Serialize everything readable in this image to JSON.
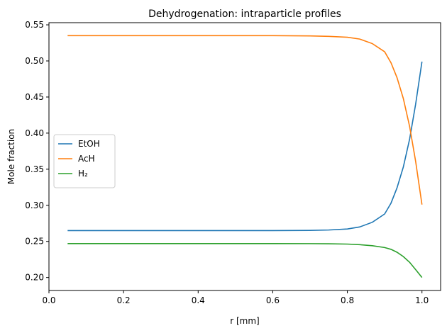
{
  "chart_data": {
    "type": "line",
    "title": "Dehydrogenation: intraparticle profiles",
    "xlabel": "r [mm]",
    "ylabel": "Mole fraction",
    "xlim": [
      0.0,
      1.05
    ],
    "ylim": [
      0.182,
      0.553
    ],
    "xticks": [
      0.0,
      0.2,
      0.4,
      0.6,
      0.8,
      1.0
    ],
    "xtick_labels": [
      "0.0",
      "0.2",
      "0.4",
      "0.6",
      "0.8",
      "1.0"
    ],
    "yticks": [
      0.2,
      0.25,
      0.3,
      0.35,
      0.4,
      0.45,
      0.5,
      0.55
    ],
    "ytick_labels": [
      "0.20",
      "0.25",
      "0.30",
      "0.35",
      "0.40",
      "0.45",
      "0.50",
      "0.55"
    ],
    "grid": false,
    "legend": "center-left",
    "x": [
      0.05,
      0.1,
      0.2,
      0.3,
      0.4,
      0.5,
      0.6,
      0.7,
      0.75,
      0.8,
      0.833,
      0.867,
      0.9,
      0.917,
      0.933,
      0.95,
      0.967,
      0.983,
      1.0
    ],
    "series": [
      {
        "name": "EtOH",
        "color": "#1f77b4",
        "values": [
          0.265,
          0.265,
          0.265,
          0.265,
          0.265,
          0.265,
          0.265,
          0.2652,
          0.2658,
          0.2672,
          0.27,
          0.2765,
          0.288,
          0.303,
          0.324,
          0.353,
          0.392,
          0.44,
          0.499
        ]
      },
      {
        "name": "AcH",
        "color": "#ff7f0e",
        "values": [
          0.535,
          0.535,
          0.535,
          0.535,
          0.535,
          0.535,
          0.535,
          0.5347,
          0.534,
          0.5328,
          0.5303,
          0.524,
          0.5127,
          0.4975,
          0.477,
          0.448,
          0.409,
          0.361,
          0.301
        ]
      },
      {
        "name": "H₂",
        "color": "#2ca02c",
        "values": [
          0.247,
          0.247,
          0.247,
          0.247,
          0.247,
          0.247,
          0.247,
          0.2469,
          0.2467,
          0.2463,
          0.2455,
          0.244,
          0.2415,
          0.239,
          0.235,
          0.229,
          0.221,
          0.211,
          0.2
        ]
      }
    ]
  }
}
